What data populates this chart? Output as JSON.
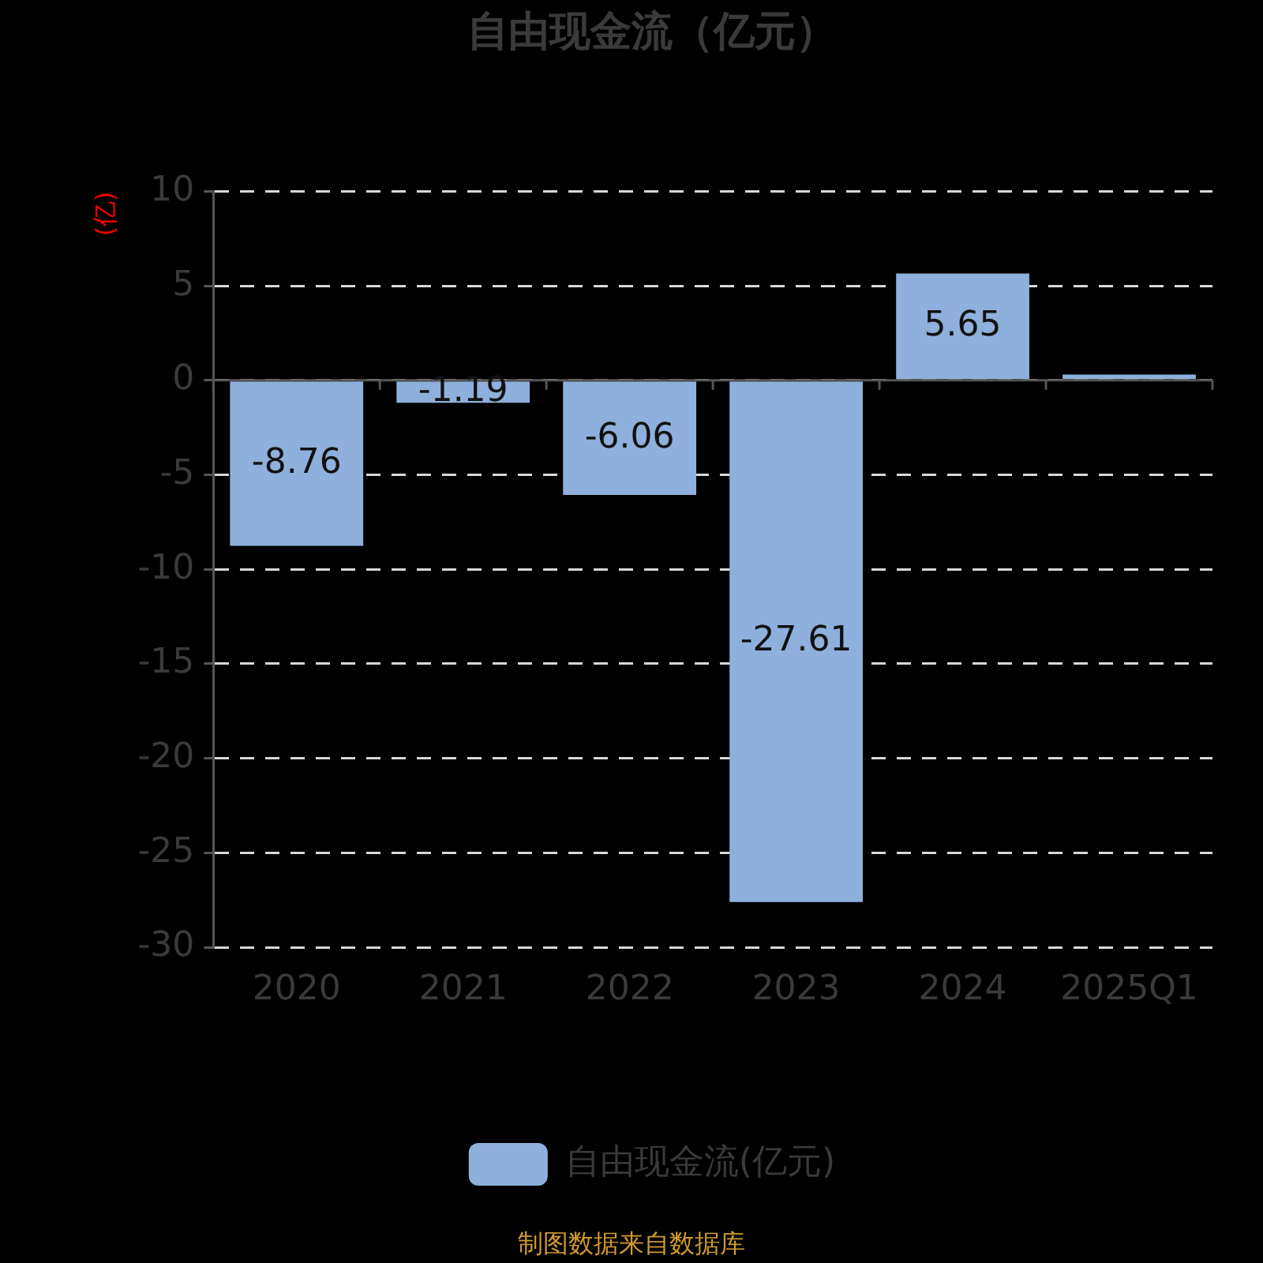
{
  "chart_data": {
    "type": "bar",
    "title": "自由现金流（亿元）",
    "ylabel": "(亿)",
    "categories": [
      "2020",
      "2021",
      "2022",
      "2023",
      "2024",
      "2025Q1"
    ],
    "series": [
      {
        "name": "自由现金流(亿元)",
        "color": "#8fb0dc",
        "values": [
          -8.76,
          -1.19,
          -6.06,
          -27.61,
          5.65,
          0.3
        ],
        "value_labels": [
          "-8.76",
          "-1.19",
          "-6.06",
          "-27.61",
          "5.65",
          null
        ]
      }
    ],
    "ylim": [
      -30,
      10
    ],
    "yticks": [
      -30,
      -25,
      -20,
      -15,
      -10,
      -5,
      0,
      5,
      10
    ],
    "grid": "y",
    "legend": "bottom",
    "annotations": [
      "制图数据来自数据库"
    ]
  }
}
